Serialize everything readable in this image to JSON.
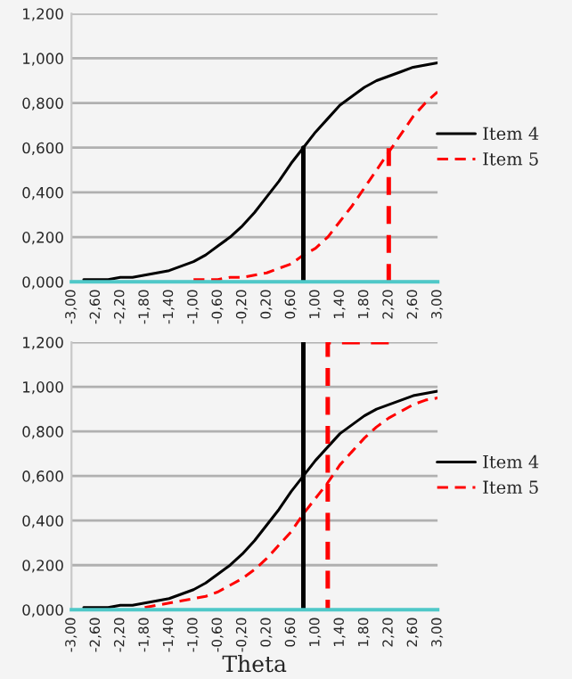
{
  "chart_data": [
    {
      "type": "line",
      "xlim": [
        -3,
        3
      ],
      "ylim": [
        0,
        1.2
      ],
      "grid": "y",
      "legend": "right",
      "marker": "none",
      "xticks": [
        {
          "value": -3,
          "label": "-3,00"
        },
        {
          "value": -2.6,
          "label": "-2,60"
        },
        {
          "value": -2.2,
          "label": "-2,20"
        },
        {
          "value": -1.8,
          "label": "-1,80"
        },
        {
          "value": -1.4,
          "label": "-1,40"
        },
        {
          "value": -1,
          "label": "-1,00"
        },
        {
          "value": -0.6,
          "label": "-0,60"
        },
        {
          "value": -0.2,
          "label": "-0,20"
        },
        {
          "value": 0.2,
          "label": "0,20"
        },
        {
          "value": 0.6,
          "label": "0,60"
        },
        {
          "value": 1,
          "label": "1,00"
        },
        {
          "value": 1.4,
          "label": "1,40"
        },
        {
          "value": 1.8,
          "label": "1,80"
        },
        {
          "value": 2.2,
          "label": "2,20"
        },
        {
          "value": 2.6,
          "label": "2,60"
        },
        {
          "value": 3,
          "label": "3,00"
        }
      ],
      "yticks": [
        {
          "value": 0,
          "label": "0,000"
        },
        {
          "value": 0.2,
          "label": "0,200"
        },
        {
          "value": 0.4,
          "label": "0,400"
        },
        {
          "value": 0.6,
          "label": "0,600"
        },
        {
          "value": 0.8,
          "label": "0,800"
        },
        {
          "value": 1,
          "label": "1,000"
        },
        {
          "value": 1.2,
          "label": "1,200"
        }
      ],
      "x": [
        -2.8,
        -2.6,
        -2.4,
        -2.2,
        -2.0,
        -1.8,
        -1.6,
        -1.4,
        -1.2,
        -1.0,
        -0.8,
        -0.6,
        -0.4,
        -0.2,
        0,
        0.2,
        0.4,
        0.6,
        0.8,
        1.0,
        1.2,
        1.4,
        1.6,
        1.8,
        2.0,
        2.2,
        2.4,
        2.6,
        2.8,
        3.0
      ],
      "series": [
        {
          "name": "Item 4",
          "color": "#000000",
          "line_style": "solid",
          "values": [
            0.01,
            0.01,
            0.01,
            0.02,
            0.02,
            0.03,
            0.04,
            0.05,
            0.07,
            0.09,
            0.12,
            0.16,
            0.2,
            0.25,
            0.31,
            0.38,
            0.45,
            0.53,
            0.6,
            0.67,
            0.73,
            0.79,
            0.83,
            0.87,
            0.9,
            0.92,
            0.94,
            0.96,
            0.97,
            0.98
          ]
        },
        {
          "name": "Item 5",
          "color": "#ff0000",
          "line_style": "dashed",
          "values": [
            null,
            null,
            null,
            null,
            null,
            null,
            null,
            null,
            null,
            0.01,
            0.01,
            0.01,
            0.02,
            0.02,
            0.03,
            0.04,
            0.06,
            0.08,
            0.12,
            0.15,
            0.2,
            0.27,
            0.34,
            0.42,
            0.5,
            0.58,
            0.66,
            0.74,
            0.8,
            0.85
          ]
        },
        {
          "color": "#000000",
          "line_style": "solid",
          "x": [
            0.8,
            0.8
          ],
          "values": [
            0,
            0.6
          ]
        },
        {
          "color": "#ff0000",
          "line_style": "dashed",
          "x": [
            2.2,
            2.2
          ],
          "values": [
            0,
            0.6
          ]
        }
      ]
    },
    {
      "type": "line",
      "xlim": [
        -3,
        3
      ],
      "ylim": [
        0,
        1.2
      ],
      "grid": "y",
      "legend": "right",
      "marker": "none",
      "xlabel": "Theta",
      "xticks": [
        {
          "value": -3,
          "label": "-3,00"
        },
        {
          "value": -2.6,
          "label": "-2,60"
        },
        {
          "value": -2.2,
          "label": "-2,20"
        },
        {
          "value": -1.8,
          "label": "-1,80"
        },
        {
          "value": -1.4,
          "label": "-1,40"
        },
        {
          "value": -1,
          "label": "-1,00"
        },
        {
          "value": -0.6,
          "label": "-0,60"
        },
        {
          "value": -0.2,
          "label": "-0,20"
        },
        {
          "value": 0.2,
          "label": "0,20"
        },
        {
          "value": 0.6,
          "label": "0,60"
        },
        {
          "value": 1,
          "label": "1,00"
        },
        {
          "value": 1.4,
          "label": "1,40"
        },
        {
          "value": 1.8,
          "label": "1,80"
        },
        {
          "value": 2.2,
          "label": "2,20"
        },
        {
          "value": 2.6,
          "label": "2,60"
        },
        {
          "value": 3,
          "label": "3,00"
        }
      ],
      "yticks": [
        {
          "value": 0,
          "label": "0,000"
        },
        {
          "value": 0.2,
          "label": "0,200"
        },
        {
          "value": 0.4,
          "label": "0,400"
        },
        {
          "value": 0.6,
          "label": "0,600"
        },
        {
          "value": 0.8,
          "label": "0,800"
        },
        {
          "value": 1,
          "label": "1,000"
        },
        {
          "value": 1.2,
          "label": "1,200"
        }
      ],
      "x": [
        -2.8,
        -2.6,
        -2.4,
        -2.2,
        -2.0,
        -1.8,
        -1.6,
        -1.4,
        -1.2,
        -1.0,
        -0.8,
        -0.6,
        -0.4,
        -0.2,
        0,
        0.2,
        0.4,
        0.6,
        0.8,
        1.0,
        1.2,
        1.4,
        1.6,
        1.8,
        2.0,
        2.2,
        2.4,
        2.6,
        2.8,
        3.0
      ],
      "series": [
        {
          "name": "Item 4",
          "color": "#000000",
          "line_style": "solid",
          "values": [
            0.01,
            0.01,
            0.01,
            0.02,
            0.02,
            0.03,
            0.04,
            0.05,
            0.07,
            0.09,
            0.12,
            0.16,
            0.2,
            0.25,
            0.31,
            0.38,
            0.45,
            0.53,
            0.6,
            0.67,
            0.73,
            0.79,
            0.83,
            0.87,
            0.9,
            0.92,
            0.94,
            0.96,
            0.97,
            0.98
          ]
        },
        {
          "name": "Item 5",
          "color": "#ff0000",
          "line_style": "dashed",
          "values": [
            null,
            null,
            null,
            null,
            null,
            0.01,
            0.02,
            0.03,
            0.04,
            0.05,
            0.06,
            0.08,
            0.11,
            0.14,
            0.18,
            0.23,
            0.29,
            0.35,
            0.43,
            0.5,
            0.57,
            0.65,
            0.71,
            0.77,
            0.82,
            0.86,
            0.89,
            0.92,
            0.94,
            0.95
          ]
        },
        {
          "color": "#000000",
          "line_style": "solid",
          "x": [
            0.8,
            0.8
          ],
          "values": [
            0,
            1.2
          ]
        },
        {
          "color": "#ff0000",
          "line_style": "dashed",
          "x": [
            2.2,
            1.2,
            1.2
          ],
          "values": [
            1.2,
            1.2,
            0
          ]
        }
      ]
    }
  ]
}
